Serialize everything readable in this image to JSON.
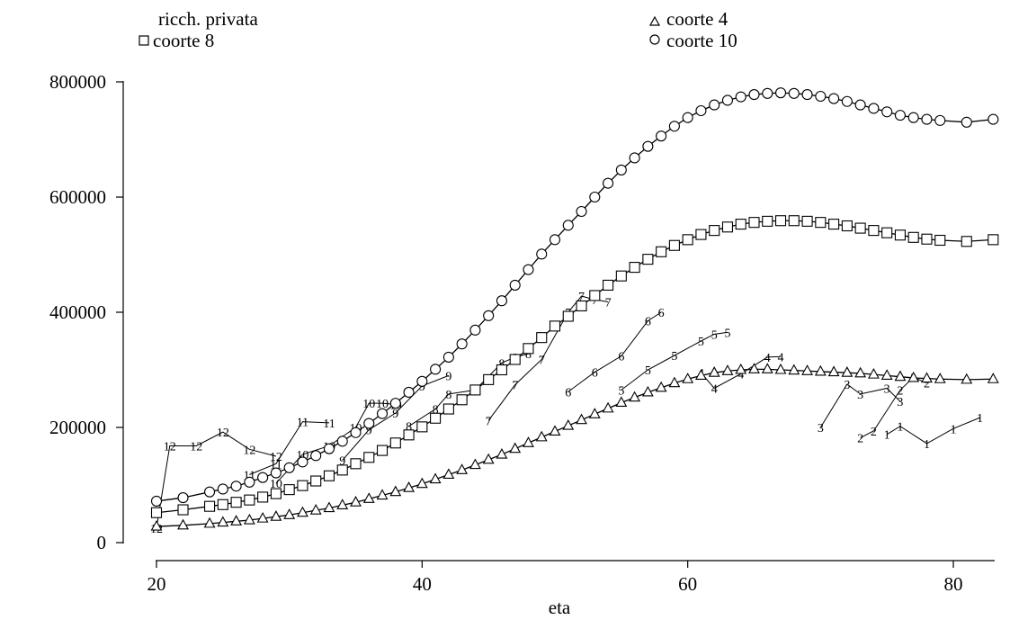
{
  "chart_data": {
    "type": "line",
    "xlabel": "eta",
    "ylabel": "",
    "xlim": [
      19,
      84
    ],
    "ylim": [
      -15000,
      830000
    ],
    "x_ticks": [
      20,
      40,
      60,
      80
    ],
    "y_ticks": [
      0,
      200000,
      400000,
      600000,
      800000
    ],
    "grid": false,
    "legend": {
      "title": "ricch. privata",
      "placement": "top",
      "entries": [
        {
          "label": "coorte 4",
          "marker": "triangle"
        },
        {
          "label": "coorte 8",
          "marker": "square"
        },
        {
          "label": "coorte 10",
          "marker": "circle"
        }
      ]
    },
    "series": [
      {
        "name": "coorte 10",
        "marker": "circle",
        "points": [
          [
            20,
            72000
          ],
          [
            22,
            78000
          ],
          [
            24,
            88000
          ],
          [
            25,
            93000
          ],
          [
            26,
            98000
          ],
          [
            27,
            105000
          ],
          [
            28,
            113000
          ],
          [
            29,
            121000
          ],
          [
            30,
            130000
          ],
          [
            31,
            140000
          ],
          [
            32,
            151000
          ],
          [
            33,
            163000
          ],
          [
            34,
            176000
          ],
          [
            35,
            191000
          ],
          [
            36,
            207000
          ],
          [
            37,
            224000
          ],
          [
            38,
            242000
          ],
          [
            39,
            261000
          ],
          [
            40,
            280000
          ],
          [
            41,
            301000
          ],
          [
            42,
            322000
          ],
          [
            43,
            345000
          ],
          [
            44,
            369000
          ],
          [
            45,
            394000
          ],
          [
            46,
            420000
          ],
          [
            47,
            447000
          ],
          [
            48,
            474000
          ],
          [
            49,
            501000
          ],
          [
            50,
            526000
          ],
          [
            51,
            551000
          ],
          [
            52,
            575000
          ],
          [
            53,
            600000
          ],
          [
            54,
            624000
          ],
          [
            55,
            647000
          ],
          [
            56,
            668000
          ],
          [
            57,
            688000
          ],
          [
            58,
            706000
          ],
          [
            59,
            723000
          ],
          [
            60,
            738000
          ],
          [
            61,
            750000
          ],
          [
            62,
            760000
          ],
          [
            63,
            768000
          ],
          [
            64,
            774000
          ],
          [
            65,
            778000
          ],
          [
            66,
            780000
          ],
          [
            67,
            781000
          ],
          [
            68,
            780000
          ],
          [
            69,
            778000
          ],
          [
            70,
            775000
          ],
          [
            71,
            771000
          ],
          [
            72,
            766000
          ],
          [
            73,
            760000
          ],
          [
            74,
            754000
          ],
          [
            75,
            748000
          ],
          [
            76,
            742000
          ],
          [
            77,
            738000
          ],
          [
            78,
            735000
          ],
          [
            79,
            733000
          ],
          [
            81,
            730000
          ],
          [
            83,
            735000
          ]
        ]
      },
      {
        "name": "coorte 8",
        "marker": "square",
        "points": [
          [
            20,
            52000
          ],
          [
            22,
            57000
          ],
          [
            24,
            63000
          ],
          [
            25,
            66000
          ],
          [
            26,
            70000
          ],
          [
            27,
            74000
          ],
          [
            28,
            79000
          ],
          [
            29,
            85000
          ],
          [
            30,
            92000
          ],
          [
            31,
            99000
          ],
          [
            32,
            107000
          ],
          [
            33,
            116000
          ],
          [
            34,
            126000
          ],
          [
            35,
            137000
          ],
          [
            36,
            148000
          ],
          [
            37,
            160000
          ],
          [
            38,
            173000
          ],
          [
            39,
            187000
          ],
          [
            40,
            201000
          ],
          [
            41,
            216000
          ],
          [
            42,
            232000
          ],
          [
            43,
            248000
          ],
          [
            44,
            265000
          ],
          [
            45,
            283000
          ],
          [
            46,
            300000
          ],
          [
            47,
            318000
          ],
          [
            48,
            337000
          ],
          [
            49,
            356000
          ],
          [
            50,
            376000
          ],
          [
            51,
            393000
          ],
          [
            52,
            411000
          ],
          [
            53,
            429000
          ],
          [
            54,
            447000
          ],
          [
            55,
            463000
          ],
          [
            56,
            478000
          ],
          [
            57,
            492000
          ],
          [
            58,
            505000
          ],
          [
            59,
            516000
          ],
          [
            60,
            526000
          ],
          [
            61,
            535000
          ],
          [
            62,
            542000
          ],
          [
            63,
            548000
          ],
          [
            64,
            553000
          ],
          [
            65,
            556000
          ],
          [
            66,
            558000
          ],
          [
            67,
            559000
          ],
          [
            68,
            559000
          ],
          [
            69,
            558000
          ],
          [
            70,
            556000
          ],
          [
            71,
            553000
          ],
          [
            72,
            550000
          ],
          [
            73,
            546000
          ],
          [
            74,
            542000
          ],
          [
            75,
            538000
          ],
          [
            76,
            534000
          ],
          [
            77,
            530000
          ],
          [
            78,
            527000
          ],
          [
            79,
            525000
          ],
          [
            81,
            523000
          ],
          [
            83,
            526000
          ]
        ]
      },
      {
        "name": "coorte 4",
        "marker": "triangle",
        "points": [
          [
            20,
            28000
          ],
          [
            22,
            30000
          ],
          [
            24,
            33000
          ],
          [
            25,
            35000
          ],
          [
            26,
            37000
          ],
          [
            27,
            39000
          ],
          [
            28,
            42000
          ],
          [
            29,
            45000
          ],
          [
            30,
            48000
          ],
          [
            31,
            52000
          ],
          [
            32,
            56000
          ],
          [
            33,
            60000
          ],
          [
            34,
            65000
          ],
          [
            35,
            70000
          ],
          [
            36,
            76000
          ],
          [
            37,
            82000
          ],
          [
            38,
            88000
          ],
          [
            39,
            95000
          ],
          [
            40,
            102000
          ],
          [
            41,
            110000
          ],
          [
            42,
            118000
          ],
          [
            43,
            126000
          ],
          [
            44,
            135000
          ],
          [
            45,
            144000
          ],
          [
            46,
            153000
          ],
          [
            47,
            163000
          ],
          [
            48,
            173000
          ],
          [
            49,
            183000
          ],
          [
            50,
            193000
          ],
          [
            51,
            203000
          ],
          [
            52,
            213000
          ],
          [
            53,
            223000
          ],
          [
            54,
            233000
          ],
          [
            55,
            243000
          ],
          [
            56,
            252000
          ],
          [
            57,
            261000
          ],
          [
            58,
            269000
          ],
          [
            59,
            277000
          ],
          [
            60,
            284000
          ],
          [
            61,
            290000
          ],
          [
            62,
            295000
          ],
          [
            63,
            298000
          ],
          [
            64,
            300000
          ],
          [
            65,
            301000
          ],
          [
            66,
            301000
          ],
          [
            67,
            300000
          ],
          [
            68,
            299000
          ],
          [
            69,
            298000
          ],
          [
            70,
            297000
          ],
          [
            71,
            296000
          ],
          [
            72,
            295000
          ],
          [
            73,
            294000
          ],
          [
            74,
            292000
          ],
          [
            75,
            290000
          ],
          [
            76,
            288000
          ],
          [
            77,
            286000
          ],
          [
            78,
            285000
          ],
          [
            79,
            284000
          ],
          [
            81,
            283000
          ],
          [
            83,
            284000
          ]
        ]
      }
    ],
    "observed_paths": [
      {
        "label": "12",
        "points": [
          [
            20,
            25000
          ],
          [
            21,
            168000
          ],
          [
            23,
            168000
          ],
          [
            25,
            192000
          ],
          [
            27,
            162000
          ],
          [
            29,
            150000
          ]
        ]
      },
      {
        "label": "11",
        "points": [
          [
            27,
            118000
          ],
          [
            29,
            137000
          ],
          [
            31,
            210000
          ],
          [
            33,
            208000
          ]
        ]
      },
      {
        "label": "10",
        "points": [
          [
            29,
            103000
          ],
          [
            31,
            153000
          ],
          [
            33,
            168000
          ],
          [
            35,
            200000
          ],
          [
            36,
            242000
          ],
          [
            37,
            242000
          ],
          [
            38,
            240000
          ]
        ]
      },
      {
        "label": "9",
        "points": [
          [
            34,
            143000
          ],
          [
            36,
            196000
          ],
          [
            38,
            225000
          ],
          [
            40,
            272000
          ],
          [
            42,
            290000
          ]
        ]
      },
      {
        "label": "8",
        "points": [
          [
            39,
            202000
          ],
          [
            41,
            232000
          ],
          [
            42,
            258000
          ],
          [
            44,
            265000
          ],
          [
            46,
            312000
          ],
          [
            47,
            322000
          ],
          [
            48,
            328000
          ]
        ]
      },
      {
        "label": "7",
        "points": [
          [
            45,
            212000
          ],
          [
            47,
            274000
          ],
          [
            49,
            318000
          ],
          [
            51,
            400000
          ],
          [
            52,
            428000
          ],
          [
            53,
            422000
          ],
          [
            54,
            418000
          ]
        ]
      },
      {
        "label": "6",
        "points": [
          [
            51,
            262000
          ],
          [
            53,
            296000
          ],
          [
            55,
            324000
          ],
          [
            57,
            385000
          ],
          [
            58,
            400000
          ]
        ]
      },
      {
        "label": "5",
        "points": [
          [
            55,
            265000
          ],
          [
            57,
            300000
          ],
          [
            59,
            325000
          ],
          [
            61,
            350000
          ],
          [
            62,
            362000
          ],
          [
            63,
            365000
          ]
        ]
      },
      {
        "label": "4",
        "points": [
          [
            61,
            295000
          ],
          [
            62,
            268000
          ],
          [
            64,
            293000
          ],
          [
            66,
            322000
          ],
          [
            67,
            323000
          ]
        ]
      },
      {
        "label": "3",
        "points": [
          [
            70,
            200000
          ],
          [
            72,
            275000
          ],
          [
            73,
            258000
          ],
          [
            75,
            268000
          ],
          [
            76,
            245000
          ]
        ]
      },
      {
        "label": "2",
        "points": [
          [
            73,
            182000
          ],
          [
            74,
            194000
          ],
          [
            76,
            265000
          ],
          [
            77,
            287000
          ],
          [
            78,
            277000
          ]
        ]
      },
      {
        "label": "1",
        "points": [
          [
            75,
            188000
          ],
          [
            76,
            202000
          ],
          [
            78,
            172000
          ],
          [
            80,
            198000
          ],
          [
            82,
            217000
          ]
        ]
      }
    ]
  }
}
